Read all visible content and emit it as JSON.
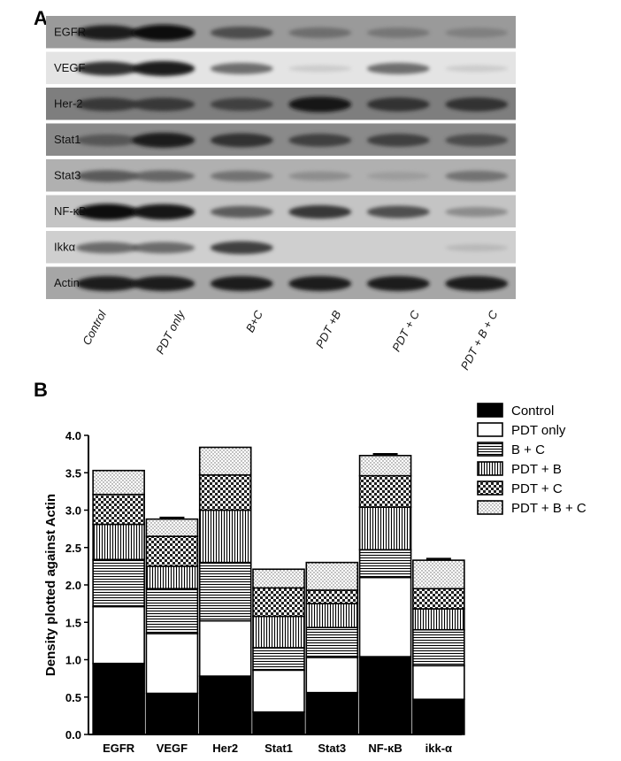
{
  "panel_a": {
    "letter": "A",
    "rows": [
      {
        "label": "EGFR",
        "intensity": [
          0.85,
          0.95,
          0.6,
          0.45,
          0.4,
          0.35
        ],
        "bg": "#9a9a9a"
      },
      {
        "label": "VEGF",
        "intensity": [
          0.75,
          0.85,
          0.5,
          0.05,
          0.5,
          0.05
        ],
        "bg": "#e4e4e4"
      },
      {
        "label": "Her-2",
        "intensity": [
          0.7,
          0.7,
          0.65,
          0.9,
          0.75,
          0.75
        ],
        "bg": "#7e7e7e"
      },
      {
        "label": "Stat1",
        "intensity": [
          0.55,
          0.85,
          0.75,
          0.65,
          0.65,
          0.6
        ],
        "bg": "#8a8a8a"
      },
      {
        "label": "Stat3",
        "intensity": [
          0.55,
          0.5,
          0.45,
          0.3,
          0.2,
          0.45
        ],
        "bg": "#b0b0b0"
      },
      {
        "label": "NF-κB",
        "intensity": [
          0.95,
          0.9,
          0.55,
          0.7,
          0.6,
          0.35
        ],
        "bg": "#c4c4c4"
      },
      {
        "label": "Ikkα",
        "intensity": [
          0.5,
          0.5,
          0.65,
          0.0,
          0.0,
          0.1
        ],
        "bg": "#cfcfcf"
      },
      {
        "label": "Actin",
        "intensity": [
          0.85,
          0.85,
          0.85,
          0.85,
          0.85,
          0.85
        ],
        "bg": "#a6a6a6"
      }
    ],
    "lanes": [
      "Control",
      "PDT only",
      "B+C",
      "PDT +B",
      "PDT + C",
      "PDT + B + C"
    ]
  },
  "panel_b": {
    "letter": "B"
  },
  "chart_data": {
    "type": "bar",
    "stacked": true,
    "categories": [
      "EGFR",
      "VEGF",
      "Her2",
      "Stat1",
      "Stat3",
      "NF-κB",
      "ikk-α"
    ],
    "ylabel": "Density plotted against Actin",
    "xlabel": "",
    "ylim": [
      0,
      4.0
    ],
    "yticks": [
      "0.0",
      "0.5",
      "1.0",
      "1.5",
      "2.0",
      "2.5",
      "3.0",
      "3.5",
      "4.0"
    ],
    "legend_position": "top-right",
    "series": [
      {
        "name": "Control",
        "pattern": "solid-black",
        "values": [
          0.95,
          0.55,
          0.78,
          0.3,
          0.56,
          1.04,
          0.47
        ],
        "error": [
          0.05,
          0.05,
          0.12,
          0.09,
          0.05,
          0.16,
          0.03
        ]
      },
      {
        "name": "PDT only",
        "pattern": "white",
        "values": [
          0.76,
          0.8,
          0.74,
          0.56,
          0.47,
          1.06,
          0.45
        ],
        "error": [
          0.04,
          0.03,
          0.05,
          0.03,
          0.04,
          0.18,
          0.04
        ]
      },
      {
        "name": "B + C",
        "pattern": "horizontal-lines",
        "values": [
          0.63,
          0.6,
          0.78,
          0.3,
          0.4,
          0.37,
          0.48
        ],
        "error": [
          0.02,
          0.04,
          0.02,
          0.02,
          0.02,
          0.02,
          0.02
        ]
      },
      {
        "name": "PDT + B",
        "pattern": "vertical-lines",
        "values": [
          0.47,
          0.3,
          0.7,
          0.42,
          0.32,
          0.57,
          0.28
        ],
        "error": [
          0.0,
          0.0,
          0.0,
          0.0,
          0.0,
          0.0,
          0.0
        ]
      },
      {
        "name": "PDT + C",
        "pattern": "checker",
        "values": [
          0.4,
          0.4,
          0.47,
          0.38,
          0.18,
          0.42,
          0.27
        ],
        "error": [
          0.0,
          0.0,
          0.0,
          0.0,
          0.0,
          0.0,
          0.0
        ]
      },
      {
        "name": "PDT + B + C",
        "pattern": "dots",
        "values": [
          0.32,
          0.23,
          0.37,
          0.25,
          0.37,
          0.27,
          0.38
        ],
        "error": [
          0.0,
          0.02,
          0.0,
          0.0,
          0.0,
          0.02,
          0.02
        ]
      }
    ]
  }
}
